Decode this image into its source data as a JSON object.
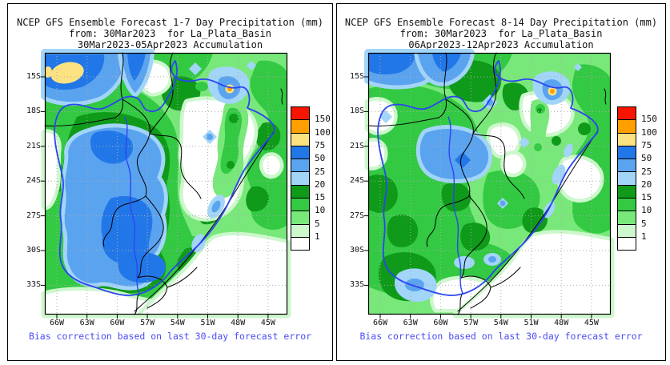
{
  "figure": {
    "background": "#ffffff",
    "border_color": "#000000"
  },
  "panels": [
    {
      "id": "week1",
      "title": "NCEP GFS Ensemble Forecast 1-7 Day Precipitation (mm)",
      "from_line": "from: 30Mar2023  for La_Plata_Basin",
      "accum_line": "30Mar2023-05Apr2023 Accumulation",
      "caption": "Bias correction based on last 30-day forecast error"
    },
    {
      "id": "week2",
      "title": "NCEP GFS Ensemble Forecast 8-14 Day Precipitation (mm)",
      "from_line": "from: 30Mar2023  for La_Plata_Basin",
      "accum_line": "06Apr2023-12Apr2023 Accumulation",
      "caption": "Bias correction based on last 30-day forecast error"
    }
  ],
  "axes": {
    "lat_labels": [
      "15S",
      "18S",
      "21S",
      "24S",
      "27S",
      "30S",
      "33S"
    ],
    "lon_labels": [
      "66W",
      "63W",
      "60W",
      "57W",
      "54W",
      "51W",
      "48W",
      "45W"
    ]
  },
  "legend": {
    "values": [
      "150",
      "100",
      "75",
      "50",
      "25",
      "20",
      "15",
      "10",
      "5",
      "1"
    ],
    "colors": [
      "#f81500",
      "#ff9f00",
      "#fde282",
      "#2277e8",
      "#5aa3ef",
      "#a2d5f8",
      "#0f9a1a",
      "#33c943",
      "#79e87a",
      "#cdf7cc",
      "#ffffff"
    ]
  },
  "colors": {
    "caption_blue": "#4a4cf2",
    "basin_outline_blue": "#2b46f0",
    "grid_gray": "#adadad",
    "border_black": "#000000"
  },
  "chart_data": [
    {
      "type": "heatmap",
      "subtype": "filled_contour_precipitation_map",
      "title": "NCEP GFS Ensemble Forecast 1-7 Day Precipitation (mm)",
      "subtitle": "from: 30Mar2023  for La_Plata_Basin",
      "period": "30Mar2023-05Apr2023 Accumulation",
      "x_ticks": [
        "66W",
        "63W",
        "60W",
        "57W",
        "54W",
        "51W",
        "48W",
        "45W"
      ],
      "y_ticks": [
        "15S",
        "18S",
        "21S",
        "24S",
        "27S",
        "30S",
        "33S"
      ],
      "xlim_deg_west": [
        66,
        45
      ],
      "ylim_deg_south": [
        33,
        15
      ],
      "levels_mm": [
        1,
        5,
        10,
        15,
        20,
        25,
        50,
        75,
        100,
        150
      ],
      "palette": [
        "#ffffff",
        "#cdf7cc",
        "#79e87a",
        "#33c943",
        "#0f9a1a",
        "#a2d5f8",
        "#5aa3ef",
        "#2277e8",
        "#fde282",
        "#ff9f00",
        "#f81500"
      ],
      "legend_position": "right",
      "grid": "dotted",
      "caption": "Bias correction based on last 30-day forecast error",
      "pattern_summary": "Large 25-50 mm (blue) maximum over the central-western basin (Paraguay/NE Argentina) with embedded 50-75 mm core; 75-100 mm (yellow) spot near 15S 64W in the NW corner; greens (1-25 mm) over most remaining basin; dry (<1 mm, white) zone over east-central Brazil around 18-24S 51-48W; small 75-100 mm dot near 17.5S 48.5W; white (dry) southeast coastal corner."
    },
    {
      "type": "heatmap",
      "subtype": "filled_contour_precipitation_map",
      "title": "NCEP GFS Ensemble Forecast 8-14 Day Precipitation (mm)",
      "subtitle": "from: 30Mar2023  for La_Plata_Basin",
      "period": "06Apr2023-12Apr2023 Accumulation",
      "x_ticks": [
        "66W",
        "63W",
        "60W",
        "57W",
        "54W",
        "51W",
        "48W",
        "45W"
      ],
      "y_ticks": [
        "15S",
        "18S",
        "21S",
        "24S",
        "27S",
        "30S",
        "33S"
      ],
      "xlim_deg_west": [
        66,
        45
      ],
      "ylim_deg_south": [
        33,
        15
      ],
      "levels_mm": [
        1,
        5,
        10,
        15,
        20,
        25,
        50,
        75,
        100,
        150
      ],
      "palette": [
        "#ffffff",
        "#cdf7cc",
        "#79e87a",
        "#33c943",
        "#0f9a1a",
        "#a2d5f8",
        "#5aa3ef",
        "#2277e8",
        "#fde282",
        "#ff9f00",
        "#f81500"
      ],
      "legend_position": "right",
      "grid": "dotted",
      "caption": "Bias correction based on last 30-day forecast error",
      "pattern_summary": "Mostly 5-20 mm greens across the basin with scattered 15-25 mm dark-green patches; 25-50 mm blues along the northern edge (15-16S) and a central blue blob near 21-22S 60-58W; small 75-100 mm dot near 17.5S 48.5W; 20-25 mm spot in SW near 33S 65W; dry (<1 mm) southeast corner and Uruguay coast."
    }
  ]
}
